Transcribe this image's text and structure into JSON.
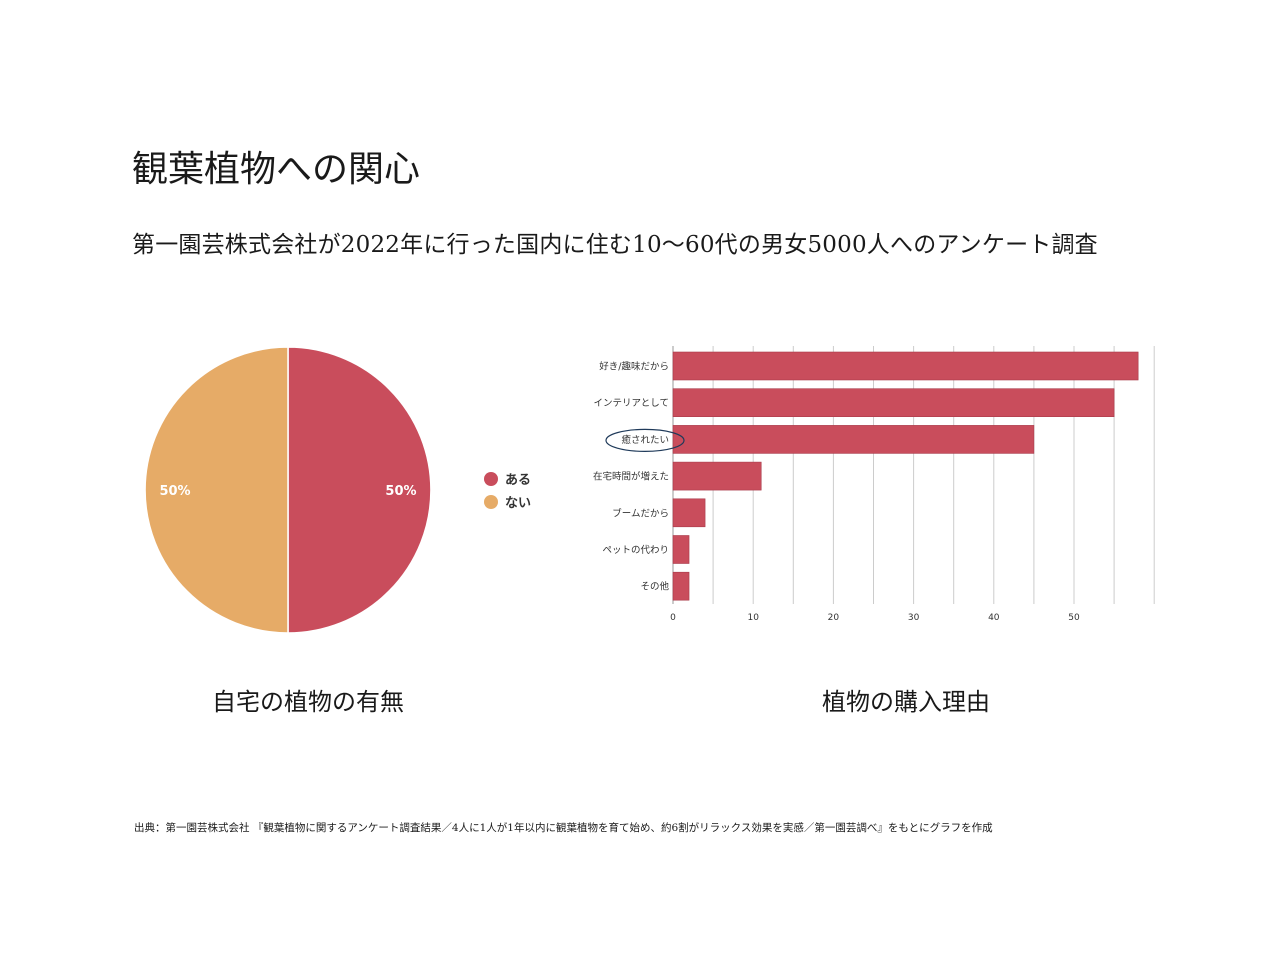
{
  "page": {
    "title": "観葉植物への関心",
    "subtitle": "第一園芸株式会社が2022年に行った国内に住む10〜60代の男女5000人へのアンケート調査",
    "source": "出典：第一園芸株式会社 『観葉植物に関するアンケート調査結果／4人に1人が1年以内に観葉植物を育て始め、約6割がリラックス効果を実感／第一園芸調べ』をもとにグラフを作成"
  },
  "chart_data": [
    {
      "type": "pie",
      "title": "自宅の植物の有無",
      "slices": [
        {
          "label": "ある",
          "value": 50,
          "display": "50%",
          "color": "#c94d5c"
        },
        {
          "label": "ない",
          "value": 50,
          "display": "50%",
          "color": "#e6ab67"
        }
      ],
      "legend": "right"
    },
    {
      "type": "bar",
      "orientation": "horizontal",
      "title": "植物の購入理由",
      "categories": [
        "好き/趣味だから",
        "インテリアとして",
        "癒されたい",
        "在宅時間が増えた",
        "ブームだから",
        "ペットの代わり",
        "その他"
      ],
      "values": [
        58,
        55,
        45,
        11,
        4,
        2,
        2
      ],
      "xlim": [
        0,
        60
      ],
      "xticks": [
        "0",
        "10",
        "20",
        "30",
        "40",
        "50"
      ],
      "grid": true,
      "color": "#c94d5c",
      "highlight": "癒されたい"
    }
  ]
}
